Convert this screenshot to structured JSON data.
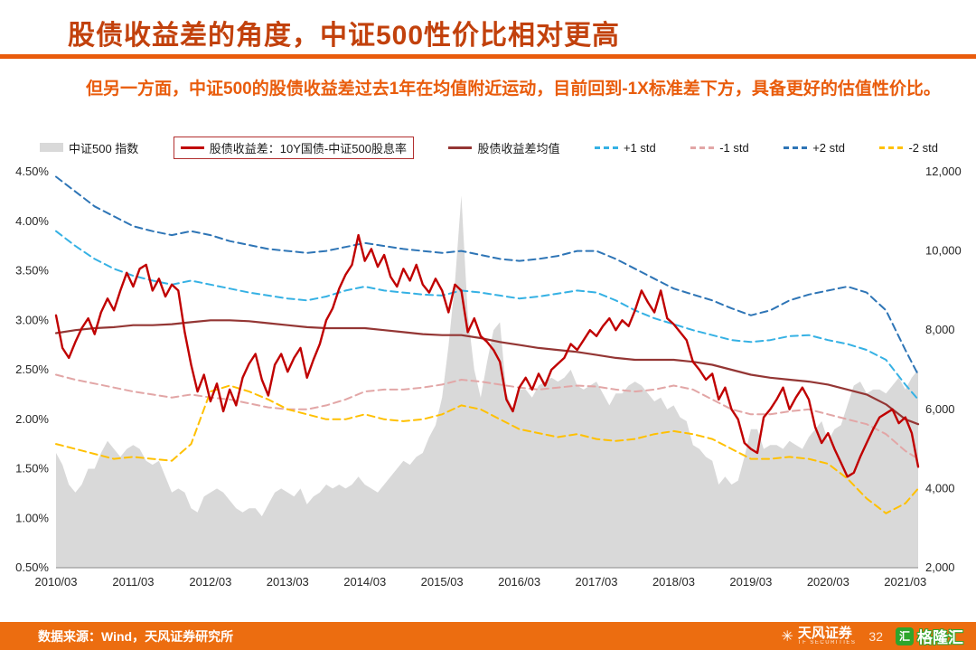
{
  "page": {
    "title": "股债收益差的角度，中证500性价比相对更高",
    "subtitle": "但另一方面，中证500的股债收益差过去1年在均值附近运动，目前回到-1X标准差下方，具备更好的估值性价比。"
  },
  "footer": {
    "source": "数据来源：Wind，天风证券研究所",
    "page_number": "32",
    "tf_logo_text": "天风证券",
    "tf_logo_sub": "TF SECURITIES",
    "gelonghui_text": "格隆汇"
  },
  "colors": {
    "title_color": "#c2410c",
    "accent": "#e95c0c",
    "footer_bg": "#ec6d10"
  },
  "chart_data": {
    "type": "line",
    "title": "",
    "grid": false,
    "legend_position": "top",
    "x_unit": "months since 2010/03",
    "x_range": [
      0,
      134
    ],
    "x_ticks": {
      "positions": [
        0,
        12,
        24,
        36,
        48,
        60,
        72,
        84,
        96,
        108,
        120,
        132
      ],
      "labels": [
        "2010/03",
        "2011/03",
        "2012/03",
        "2013/03",
        "2014/03",
        "2015/03",
        "2016/03",
        "2017/03",
        "2018/03",
        "2019/03",
        "2020/03",
        "2021/03"
      ]
    },
    "y_left": {
      "min": 0.5,
      "max": 4.5,
      "ticks": [
        0.5,
        1.0,
        1.5,
        2.0,
        2.5,
        3.0,
        3.5,
        4.0,
        4.5
      ],
      "labels": [
        "0.50%",
        "1.00%",
        "1.50%",
        "2.00%",
        "2.50%",
        "3.00%",
        "3.50%",
        "4.00%",
        "4.50%"
      ]
    },
    "y_right": {
      "min": 2000,
      "max": 12000,
      "ticks": [
        2000,
        4000,
        6000,
        8000,
        10000,
        12000
      ],
      "labels": [
        "2,000",
        "4,000",
        "6,000",
        "8,000",
        "10,000",
        "12,000"
      ]
    },
    "series": [
      {
        "id": "csi500",
        "name": "中证500 指数",
        "kind": "area",
        "axis": "right",
        "color": "#d9d9d9",
        "layer": 0,
        "values": [
          4900,
          4600,
          4100,
          3900,
          4100,
          4500,
          4500,
          4900,
          5200,
          5000,
          4800,
          5000,
          5100,
          5000,
          4700,
          4600,
          4700,
          4300,
          3900,
          4000,
          3900,
          3500,
          3400,
          3800,
          3900,
          4000,
          3900,
          3700,
          3500,
          3400,
          3500,
          3500,
          3300,
          3600,
          3900,
          4000,
          3900,
          3800,
          4000,
          3600,
          3800,
          3900,
          4100,
          4000,
          4100,
          4000,
          4100,
          4300,
          4100,
          4000,
          3900,
          4100,
          4300,
          4500,
          4700,
          4600,
          4800,
          4900,
          5300,
          5600,
          6300,
          7600,
          9200,
          11400,
          8400,
          7000,
          6300,
          7200,
          8000,
          8200,
          6400,
          6000,
          6500,
          6500,
          6300,
          6600,
          6700,
          6800,
          6700,
          6800,
          7000,
          6600,
          6500,
          6600,
          6700,
          6400,
          6100,
          6400,
          6400,
          6600,
          6700,
          6600,
          6400,
          6200,
          6300,
          6000,
          6100,
          5800,
          5700,
          5100,
          5000,
          4800,
          4700,
          4100,
          4300,
          4100,
          4200,
          4800,
          5500,
          5500,
          5000,
          5100,
          5100,
          5000,
          5200,
          5100,
          5000,
          5300,
          5500,
          5700,
          5200,
          5500,
          5600,
          6100,
          6600,
          6700,
          6400,
          6500,
          6500,
          6400,
          6600,
          6800,
          6500,
          6800,
          7000
        ]
      },
      {
        "id": "spread",
        "name": "股债收益差：10Y国债-中证500股息率",
        "kind": "line",
        "axis": "left",
        "color": "#c00000",
        "width": 2.4,
        "layer": 4,
        "legend_box": true,
        "values": [
          3.05,
          2.72,
          2.62,
          2.78,
          2.92,
          3.02,
          2.86,
          3.08,
          3.22,
          3.1,
          3.3,
          3.48,
          3.34,
          3.52,
          3.56,
          3.3,
          3.42,
          3.24,
          3.36,
          3.3,
          2.88,
          2.55,
          2.28,
          2.45,
          2.18,
          2.36,
          2.08,
          2.3,
          2.14,
          2.42,
          2.56,
          2.66,
          2.4,
          2.24,
          2.55,
          2.66,
          2.48,
          2.62,
          2.72,
          2.42,
          2.6,
          2.76,
          3.0,
          3.12,
          3.32,
          3.46,
          3.56,
          3.86,
          3.6,
          3.72,
          3.54,
          3.66,
          3.44,
          3.34,
          3.52,
          3.4,
          3.56,
          3.36,
          3.28,
          3.42,
          3.3,
          3.08,
          3.36,
          3.3,
          2.88,
          3.02,
          2.84,
          2.78,
          2.7,
          2.58,
          2.2,
          2.08,
          2.32,
          2.42,
          2.3,
          2.46,
          2.34,
          2.5,
          2.56,
          2.62,
          2.76,
          2.7,
          2.8,
          2.9,
          2.84,
          2.94,
          3.02,
          2.9,
          3.0,
          2.94,
          3.1,
          3.3,
          3.18,
          3.08,
          3.3,
          3.02,
          2.96,
          2.88,
          2.8,
          2.58,
          2.5,
          2.4,
          2.46,
          2.2,
          2.32,
          2.1,
          2.0,
          1.76,
          1.7,
          1.66,
          2.02,
          2.1,
          2.2,
          2.32,
          2.1,
          2.22,
          2.32,
          2.2,
          1.92,
          1.76,
          1.86,
          1.7,
          1.56,
          1.42,
          1.46,
          1.62,
          1.76,
          1.9,
          2.02,
          2.06,
          2.1,
          1.96,
          2.02,
          1.86,
          1.52
        ]
      },
      {
        "id": "mean",
        "name": "股债收益差均值",
        "kind": "line",
        "axis": "left",
        "color": "#943634",
        "width": 2.2,
        "layer": 3,
        "x": [
          0,
          3,
          6,
          9,
          12,
          15,
          18,
          21,
          24,
          27,
          30,
          33,
          36,
          39,
          42,
          45,
          48,
          51,
          54,
          57,
          60,
          63,
          66,
          69,
          72,
          75,
          78,
          81,
          84,
          87,
          90,
          93,
          96,
          99,
          102,
          105,
          108,
          111,
          114,
          117,
          120,
          123,
          126,
          129,
          132,
          134
        ],
        "values": [
          2.87,
          2.9,
          2.92,
          2.93,
          2.95,
          2.95,
          2.96,
          2.98,
          3.0,
          3.0,
          2.99,
          2.97,
          2.95,
          2.93,
          2.92,
          2.92,
          2.92,
          2.9,
          2.88,
          2.86,
          2.85,
          2.85,
          2.82,
          2.78,
          2.75,
          2.72,
          2.7,
          2.68,
          2.65,
          2.62,
          2.6,
          2.6,
          2.6,
          2.58,
          2.55,
          2.5,
          2.45,
          2.42,
          2.4,
          2.38,
          2.35,
          2.3,
          2.25,
          2.15,
          2.0,
          1.95
        ]
      },
      {
        "id": "p1std",
        "name": "+1 std",
        "kind": "line",
        "axis": "left",
        "color": "#35b1e4",
        "width": 2,
        "dash": "8,5",
        "layer": 1,
        "x": [
          0,
          3,
          6,
          9,
          12,
          15,
          18,
          21,
          24,
          27,
          30,
          33,
          36,
          39,
          42,
          45,
          48,
          51,
          54,
          57,
          60,
          63,
          66,
          69,
          72,
          75,
          78,
          81,
          84,
          87,
          90,
          93,
          96,
          99,
          102,
          105,
          108,
          111,
          114,
          117,
          120,
          123,
          126,
          129,
          132,
          134
        ],
        "values": [
          3.9,
          3.75,
          3.62,
          3.52,
          3.45,
          3.4,
          3.36,
          3.4,
          3.36,
          3.32,
          3.28,
          3.25,
          3.22,
          3.2,
          3.24,
          3.3,
          3.34,
          3.3,
          3.28,
          3.26,
          3.25,
          3.3,
          3.28,
          3.25,
          3.22,
          3.24,
          3.27,
          3.3,
          3.28,
          3.2,
          3.1,
          3.02,
          2.96,
          2.9,
          2.85,
          2.8,
          2.78,
          2.8,
          2.84,
          2.85,
          2.8,
          2.76,
          2.7,
          2.6,
          2.35,
          2.2
        ]
      },
      {
        "id": "m1std",
        "name": "-1 std",
        "kind": "line",
        "axis": "left",
        "color": "#e2a6a6",
        "width": 2,
        "dash": "8,5",
        "layer": 1,
        "x": [
          0,
          3,
          6,
          9,
          12,
          15,
          18,
          21,
          24,
          27,
          30,
          33,
          36,
          39,
          42,
          45,
          48,
          51,
          54,
          57,
          60,
          63,
          66,
          69,
          72,
          75,
          78,
          81,
          84,
          87,
          90,
          93,
          96,
          99,
          102,
          105,
          108,
          111,
          114,
          117,
          120,
          123,
          126,
          129,
          132,
          134
        ],
        "values": [
          2.45,
          2.4,
          2.36,
          2.32,
          2.28,
          2.25,
          2.22,
          2.25,
          2.22,
          2.2,
          2.16,
          2.12,
          2.1,
          2.1,
          2.14,
          2.2,
          2.28,
          2.3,
          2.3,
          2.32,
          2.35,
          2.4,
          2.38,
          2.35,
          2.32,
          2.3,
          2.32,
          2.34,
          2.33,
          2.3,
          2.28,
          2.3,
          2.34,
          2.3,
          2.2,
          2.1,
          2.05,
          2.05,
          2.08,
          2.1,
          2.05,
          2.0,
          1.95,
          1.85,
          1.68,
          1.6
        ]
      },
      {
        "id": "p2std",
        "name": "+2 std",
        "kind": "line",
        "axis": "left",
        "color": "#2e75b6",
        "width": 2,
        "dash": "8,5",
        "layer": 1,
        "x": [
          0,
          3,
          6,
          9,
          12,
          15,
          18,
          21,
          24,
          27,
          30,
          33,
          36,
          39,
          42,
          45,
          48,
          51,
          54,
          57,
          60,
          63,
          66,
          69,
          72,
          75,
          78,
          81,
          84,
          87,
          90,
          93,
          96,
          99,
          102,
          105,
          108,
          111,
          114,
          117,
          120,
          123,
          126,
          129,
          132,
          134
        ],
        "values": [
          4.45,
          4.3,
          4.15,
          4.05,
          3.95,
          3.9,
          3.86,
          3.9,
          3.86,
          3.8,
          3.76,
          3.72,
          3.7,
          3.68,
          3.7,
          3.74,
          3.78,
          3.75,
          3.72,
          3.7,
          3.68,
          3.7,
          3.66,
          3.62,
          3.6,
          3.62,
          3.65,
          3.7,
          3.7,
          3.62,
          3.52,
          3.42,
          3.32,
          3.26,
          3.2,
          3.12,
          3.05,
          3.1,
          3.2,
          3.26,
          3.3,
          3.34,
          3.28,
          3.1,
          2.7,
          2.45
        ]
      },
      {
        "id": "m2std",
        "name": "-2 std",
        "kind": "line",
        "axis": "left",
        "color": "#ffc000",
        "width": 2,
        "dash": "8,5",
        "layer": 1,
        "x": [
          0,
          3,
          6,
          9,
          12,
          15,
          18,
          21,
          24,
          27,
          30,
          33,
          36,
          39,
          42,
          45,
          48,
          51,
          54,
          57,
          60,
          63,
          66,
          69,
          72,
          75,
          78,
          81,
          84,
          87,
          90,
          93,
          96,
          99,
          102,
          105,
          108,
          111,
          114,
          117,
          120,
          123,
          126,
          129,
          132,
          134
        ],
        "values": [
          1.75,
          1.7,
          1.65,
          1.6,
          1.62,
          1.6,
          1.58,
          1.75,
          2.28,
          2.34,
          2.28,
          2.2,
          2.1,
          2.05,
          2.0,
          2.0,
          2.05,
          2.0,
          1.98,
          2.0,
          2.05,
          2.14,
          2.1,
          2.0,
          1.9,
          1.86,
          1.82,
          1.85,
          1.8,
          1.78,
          1.8,
          1.85,
          1.88,
          1.85,
          1.8,
          1.7,
          1.6,
          1.6,
          1.62,
          1.6,
          1.55,
          1.4,
          1.2,
          1.05,
          1.15,
          1.3
        ]
      }
    ]
  }
}
